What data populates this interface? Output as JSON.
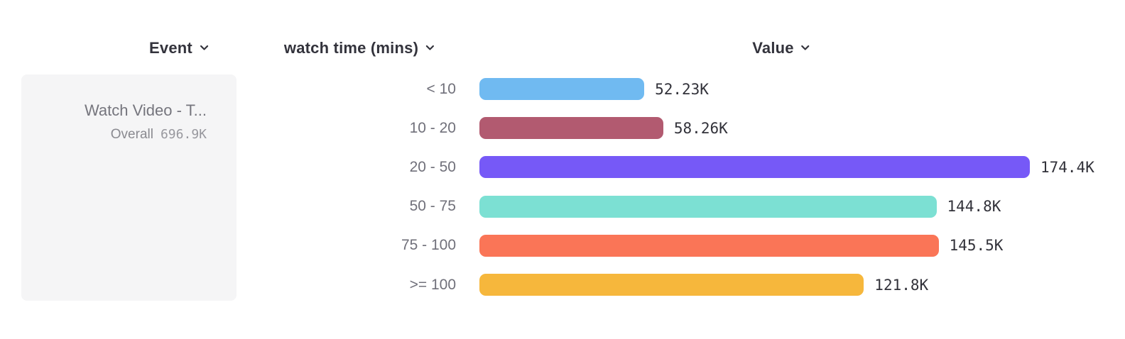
{
  "header": {
    "columns": [
      {
        "label": "Event"
      },
      {
        "label": "watch time (mins)"
      },
      {
        "label": "Value"
      }
    ]
  },
  "event_card": {
    "name": "Watch Video - T...",
    "overall_label": "Overall",
    "overall_value": "696.9K"
  },
  "chart_data": {
    "type": "bar",
    "orientation": "horizontal",
    "title": "",
    "xlabel": "Value",
    "ylabel": "watch time (mins)",
    "categories": [
      "< 10",
      "10 - 20",
      "20 - 50",
      "50 - 75",
      "75 - 100",
      ">= 100"
    ],
    "values": [
      52.23,
      58.26,
      174.4,
      144.8,
      145.5,
      121.8
    ],
    "unit": "K",
    "value_labels": [
      "52.23K",
      "58.26K",
      "174.4K",
      "144.8K",
      "145.5K",
      "121.8K"
    ],
    "bar_colors": [
      "#70baf1",
      "#b25a70",
      "#7659f7",
      "#7ce0d3",
      "#fa7557",
      "#f6b73c"
    ],
    "max_value": 174.4,
    "total": "696.9K",
    "series_name": "Watch Video - T...",
    "grid": false,
    "legend": "none",
    "axis_ticks": "none"
  },
  "colors": {
    "header_text": "#33333c",
    "category_text": "#70707a",
    "value_text": "#32323a",
    "event_card_bg": "#f5f5f6",
    "event_name_text": "#75757d",
    "overall_text": "#8a8a90",
    "overall_value_text": "#98989e"
  }
}
